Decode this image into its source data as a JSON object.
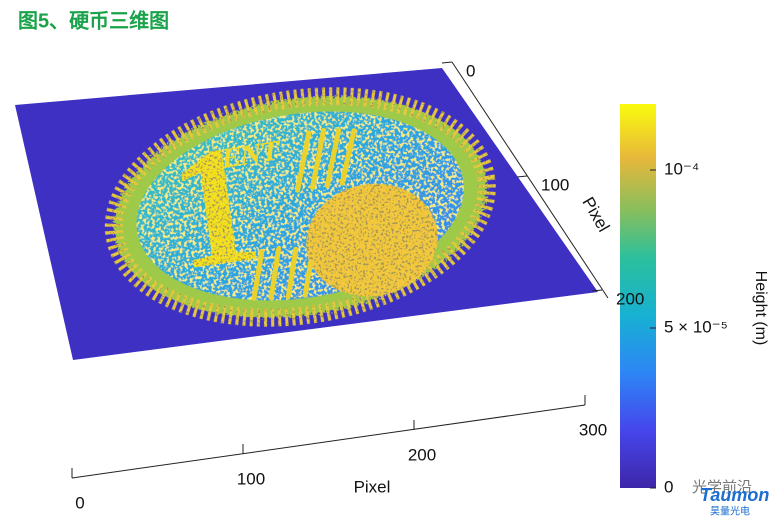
{
  "title": "图5、硬币三维图",
  "x_axis": {
    "label": "Pixel",
    "ticks": [
      "0",
      "100",
      "200",
      "300"
    ]
  },
  "y_axis": {
    "label": "Pixel",
    "ticks": [
      "0",
      "100",
      "200"
    ]
  },
  "colorbar": {
    "label": "Height (m)",
    "ticks": [
      "10⁻⁴",
      "5 × 10⁻⁵",
      "0"
    ]
  },
  "watermark": {
    "source": "光学前沿",
    "brand": "Taumon",
    "brand_cn": "昊量光电"
  }
}
